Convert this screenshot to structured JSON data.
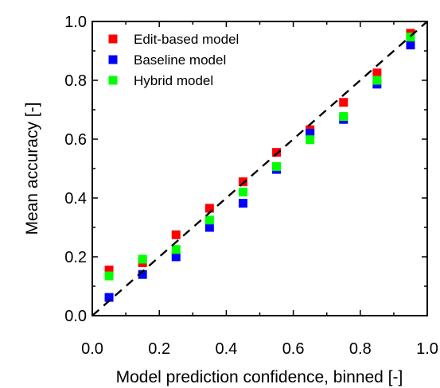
{
  "chart_data": {
    "type": "scatter",
    "xlabel": "Model prediction confidence, binned [-]",
    "ylabel": "Mean accuracy [-]",
    "xlim": [
      0.0,
      1.0
    ],
    "ylim": [
      0.0,
      1.0
    ],
    "x_ticks": [
      "0.0",
      "0.2",
      "0.4",
      "0.6",
      "0.8",
      "1.0"
    ],
    "y_ticks": [
      "0.0",
      "0.2",
      "0.4",
      "0.6",
      "0.8",
      "1.0"
    ],
    "grid": false,
    "legend_position": "top-left",
    "reference_line": {
      "style": "dashed",
      "color": "#000000",
      "from": [
        0.0,
        0.0
      ],
      "to": [
        1.0,
        1.0
      ]
    },
    "series": [
      {
        "name": "Edit-based model",
        "color": "#ff0000",
        "points": [
          {
            "x": 0.05,
            "y": 0.155
          },
          {
            "x": 0.15,
            "y": 0.18
          },
          {
            "x": 0.25,
            "y": 0.275
          },
          {
            "x": 0.35,
            "y": 0.365
          },
          {
            "x": 0.45,
            "y": 0.455
          },
          {
            "x": 0.55,
            "y": 0.555
          },
          {
            "x": 0.65,
            "y": 0.632
          },
          {
            "x": 0.75,
            "y": 0.725
          },
          {
            "x": 0.85,
            "y": 0.825
          },
          {
            "x": 0.95,
            "y": 0.96
          }
        ]
      },
      {
        "name": "Baseline model",
        "color": "#0000ff",
        "points": [
          {
            "x": 0.05,
            "y": 0.062
          },
          {
            "x": 0.15,
            "y": 0.14
          },
          {
            "x": 0.25,
            "y": 0.2
          },
          {
            "x": 0.35,
            "y": 0.3
          },
          {
            "x": 0.45,
            "y": 0.382
          },
          {
            "x": 0.55,
            "y": 0.497
          },
          {
            "x": 0.65,
            "y": 0.62
          },
          {
            "x": 0.75,
            "y": 0.667
          },
          {
            "x": 0.85,
            "y": 0.787
          },
          {
            "x": 0.95,
            "y": 0.92
          }
        ]
      },
      {
        "name": "Hybrid model",
        "color": "#00ff00",
        "points": [
          {
            "x": 0.05,
            "y": 0.135
          },
          {
            "x": 0.15,
            "y": 0.192
          },
          {
            "x": 0.25,
            "y": 0.225
          },
          {
            "x": 0.35,
            "y": 0.325
          },
          {
            "x": 0.45,
            "y": 0.42
          },
          {
            "x": 0.55,
            "y": 0.507
          },
          {
            "x": 0.65,
            "y": 0.598
          },
          {
            "x": 0.75,
            "y": 0.677
          },
          {
            "x": 0.85,
            "y": 0.8
          },
          {
            "x": 0.95,
            "y": 0.947
          }
        ]
      }
    ]
  }
}
